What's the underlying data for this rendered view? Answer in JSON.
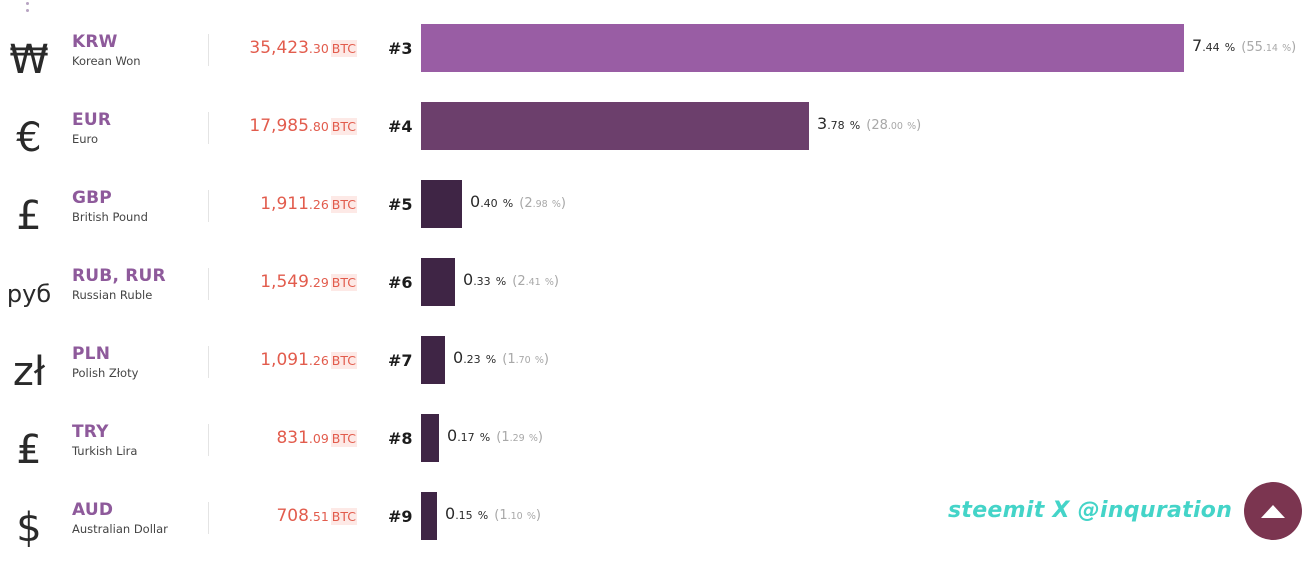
{
  "rows": [
    {
      "symbol": "₩",
      "code": "KRW",
      "name": "Korean Won",
      "volume_int": "35,423",
      "volume_dec": ".30",
      "volume_unit": "BTC",
      "rank": "#3",
      "pct_int": "7",
      "pct_dec": ".44",
      "pct_unit": "%",
      "share_open": "(",
      "share_int": "55",
      "share_dec": ".14",
      "share_unit": "%",
      "share_close": ")",
      "bar_color": "#995da4",
      "bar_fraction": 1.0
    },
    {
      "symbol": "€",
      "code": "EUR",
      "name": "Euro",
      "volume_int": "17,985",
      "volume_dec": ".80",
      "volume_unit": "BTC",
      "rank": "#4",
      "pct_int": "3",
      "pct_dec": ".78",
      "pct_unit": "%",
      "share_open": "(",
      "share_int": "28",
      "share_dec": ".00",
      "share_unit": "%",
      "share_close": ")",
      "bar_color": "#6c3f6c",
      "bar_fraction": 0.508
    },
    {
      "symbol": "£",
      "code": "GBP",
      "name": "British Pound",
      "volume_int": "1,911",
      "volume_dec": ".26",
      "volume_unit": "BTC",
      "rank": "#5",
      "pct_int": "0",
      "pct_dec": ".40",
      "pct_unit": "%",
      "share_open": "(",
      "share_int": "2",
      "share_dec": ".98",
      "share_unit": "%",
      "share_close": ")",
      "bar_color": "#3f2545",
      "bar_fraction": 0.054
    },
    {
      "symbol": "руб",
      "code": "RUB, RUR",
      "name": "Russian Ruble",
      "volume_int": "1,549",
      "volume_dec": ".29",
      "volume_unit": "BTC",
      "rank": "#6",
      "pct_int": "0",
      "pct_dec": ".33",
      "pct_unit": "%",
      "share_open": "(",
      "share_int": "2",
      "share_dec": ".41",
      "share_unit": "%",
      "share_close": ")",
      "bar_color": "#3f2545",
      "bar_fraction": 0.044
    },
    {
      "symbol": "zł",
      "code": "PLN",
      "name": "Polish Złoty",
      "volume_int": "1,091",
      "volume_dec": ".26",
      "volume_unit": "BTC",
      "rank": "#7",
      "pct_int": "0",
      "pct_dec": ".23",
      "pct_unit": "%",
      "share_open": "(",
      "share_int": "1",
      "share_dec": ".70",
      "share_unit": "%",
      "share_close": ")",
      "bar_color": "#3f2545",
      "bar_fraction": 0.032
    },
    {
      "symbol": "₤",
      "code": "TRY",
      "name": "Turkish Lira",
      "volume_int": "831",
      "volume_dec": ".09",
      "volume_unit": "BTC",
      "rank": "#8",
      "pct_int": "0",
      "pct_dec": ".17",
      "pct_unit": "%",
      "share_open": "(",
      "share_int": "1",
      "share_dec": ".29",
      "share_unit": "%",
      "share_close": ")",
      "bar_color": "#3f2545",
      "bar_fraction": 0.024
    },
    {
      "symbol": "$",
      "code": "AUD",
      "name": "Australian Dollar",
      "volume_int": "708",
      "volume_dec": ".51",
      "volume_unit": "BTC",
      "rank": "#9",
      "pct_int": "0",
      "pct_dec": ".15",
      "pct_unit": "%",
      "share_open": "(",
      "share_int": "1",
      "share_dec": ".10",
      "share_unit": "%",
      "share_close": ")",
      "bar_color": "#3f2545",
      "bar_fraction": 0.021
    }
  ],
  "watermark": "steemit  X  @inquration",
  "scroll_top_icon": "arrow-up-icon",
  "accent_color": "#7b3550"
}
